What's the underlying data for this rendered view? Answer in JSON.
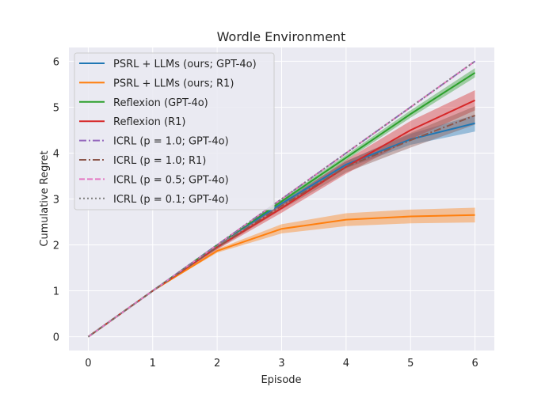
{
  "chart_data": {
    "type": "line",
    "title": "Wordle Environment",
    "xlabel": "Episode",
    "ylabel": "Cumulative Regret",
    "xlim": [
      -0.3,
      6.3
    ],
    "ylim": [
      -0.3,
      6.3
    ],
    "xticks": [
      "0",
      "1",
      "2",
      "3",
      "4",
      "5",
      "6"
    ],
    "yticks": [
      "0",
      "1",
      "2",
      "3",
      "4",
      "5",
      "6"
    ],
    "grid": true,
    "legend_position": "top-left",
    "x": [
      0,
      1,
      2,
      3,
      4,
      5,
      6
    ],
    "series": [
      {
        "name": "PSRL + LLMs (ours; GPT-4o)",
        "color": "#1f77b4",
        "style": "solid",
        "values": [
          0,
          1,
          2,
          2.9,
          3.75,
          4.3,
          4.65
        ],
        "band": [
          0,
          0,
          0,
          0.05,
          0.08,
          0.12,
          0.18
        ]
      },
      {
        "name": "PSRL + LLMs (ours; R1)",
        "color": "#ff7f0e",
        "style": "solid",
        "values": [
          0,
          1,
          1.87,
          2.35,
          2.55,
          2.62,
          2.65
        ],
        "band": [
          0,
          0,
          0.04,
          0.1,
          0.14,
          0.15,
          0.16
        ]
      },
      {
        "name": "Reflexion (GPT-4o)",
        "color": "#2ca02c",
        "style": "solid",
        "values": [
          0,
          1,
          2,
          2.95,
          3.9,
          4.85,
          5.75
        ],
        "band": [
          0,
          0,
          0,
          0.04,
          0.06,
          0.08,
          0.1
        ]
      },
      {
        "name": "Reflexion (R1)",
        "color": "#d62728",
        "style": "solid",
        "values": [
          0,
          1,
          1.95,
          2.8,
          3.7,
          4.5,
          5.15
        ],
        "band": [
          0,
          0,
          0.05,
          0.1,
          0.15,
          0.2,
          0.22
        ]
      },
      {
        "name": "ICRL (p = 1.0; GPT-4o)",
        "color": "#9467bd",
        "style": "dashdot",
        "values": [
          0,
          1,
          2,
          3,
          4,
          5,
          6
        ],
        "band": [
          0,
          0,
          0,
          0,
          0,
          0,
          0
        ]
      },
      {
        "name": "ICRL (p = 1.0; R1)",
        "color": "#8c564b",
        "style": "dashdot",
        "values": [
          0,
          1,
          1.95,
          2.85,
          3.7,
          4.28,
          4.82
        ],
        "band": [
          0,
          0,
          0.04,
          0.08,
          0.12,
          0.16,
          0.2
        ]
      },
      {
        "name": "ICRL (p = 0.5; GPT-4o)",
        "color": "#e377c2",
        "style": "dashed",
        "values": [
          0,
          1,
          2,
          3,
          4,
          5,
          6
        ],
        "band": [
          0,
          0,
          0,
          0,
          0,
          0,
          0
        ]
      },
      {
        "name": "ICRL (p = 0.1; GPT-4o)",
        "color": "#7f7f7f",
        "style": "dotted",
        "values": [
          0,
          1,
          2,
          3,
          4,
          5,
          6
        ],
        "band": [
          0,
          0,
          0,
          0,
          0,
          0,
          0
        ]
      }
    ]
  }
}
